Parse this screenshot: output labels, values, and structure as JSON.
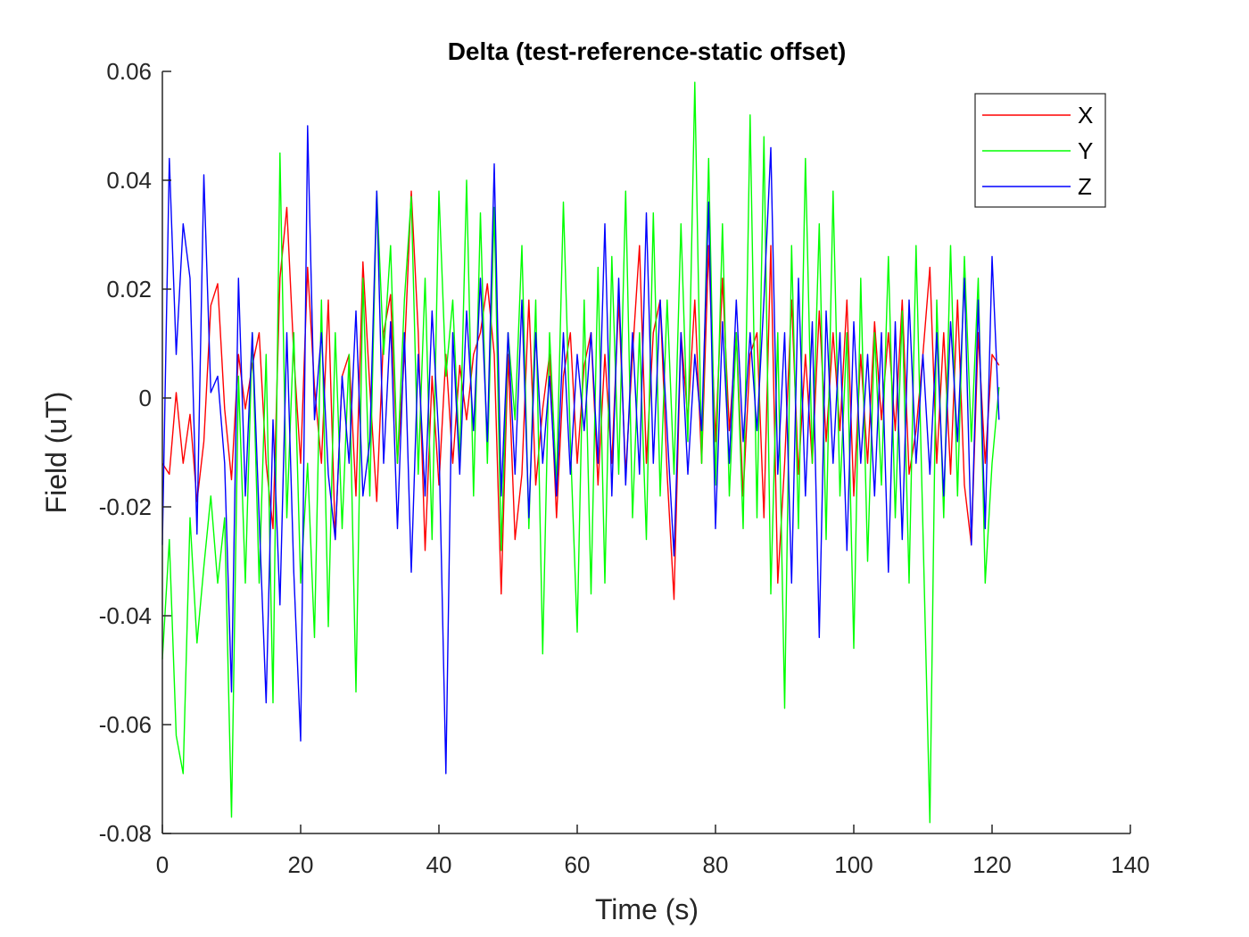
{
  "chart_data": {
    "type": "line",
    "title": "Delta (test-reference-static offset)",
    "xlabel": "Time (s)",
    "ylabel": "Field (uT)",
    "xlim": [
      0,
      140
    ],
    "ylim": [
      -0.08,
      0.06
    ],
    "xticks": [
      0,
      20,
      40,
      60,
      80,
      100,
      120,
      140
    ],
    "xtick_labels": [
      "0",
      "20",
      "40",
      "60",
      "80",
      "100",
      "120",
      "140"
    ],
    "yticks": [
      -0.08,
      -0.06,
      -0.04,
      -0.02,
      0,
      0.02,
      0.04,
      0.06
    ],
    "ytick_labels": [
      "-0.08",
      "-0.06",
      "-0.04",
      "-0.02",
      "0",
      "0.02",
      "0.04",
      "0.06"
    ],
    "grid": false,
    "legend_position": "top-right",
    "series": [
      {
        "name": "X",
        "color": "#ff0000",
        "x": [
          0,
          1,
          2,
          3,
          4,
          5,
          6,
          7,
          8,
          9,
          10,
          11,
          12,
          13,
          14,
          15,
          16,
          17,
          18,
          19,
          20,
          21,
          22,
          23,
          24,
          25,
          26,
          27,
          28,
          29,
          30,
          31,
          32,
          33,
          34,
          35,
          36,
          37,
          38,
          39,
          40,
          41,
          42,
          43,
          44,
          45,
          46,
          47,
          48,
          49,
          50,
          51,
          52,
          53,
          54,
          55,
          56,
          57,
          58,
          59,
          60,
          61,
          62,
          63,
          64,
          65,
          66,
          67,
          68,
          69,
          70,
          71,
          72,
          73,
          74,
          75,
          76,
          77,
          78,
          79,
          80,
          81,
          82,
          83,
          84,
          85,
          86,
          87,
          88,
          89,
          90,
          91,
          92,
          93,
          94,
          95,
          96,
          97,
          98,
          99,
          100,
          101,
          102,
          103,
          104,
          105,
          106,
          107,
          108,
          109,
          110,
          111,
          112,
          113,
          114,
          115,
          116,
          117,
          118,
          119,
          120,
          121
        ],
        "y": [
          -0.012,
          -0.014,
          0.001,
          -0.012,
          -0.003,
          -0.019,
          -0.008,
          0.017,
          0.021,
          -0.002,
          -0.015,
          0.008,
          -0.002,
          0.006,
          0.012,
          -0.012,
          -0.024,
          0.022,
          0.035,
          0.008,
          -0.012,
          0.024,
          0.002,
          -0.012,
          0.018,
          -0.026,
          0.004,
          0.008,
          -0.018,
          0.025,
          0.002,
          -0.019,
          0.012,
          0.019,
          -0.012,
          0.008,
          0.038,
          0.012,
          -0.028,
          0.004,
          -0.016,
          0.008,
          -0.012,
          0.006,
          -0.004,
          0.008,
          0.012,
          0.021,
          0.008,
          -0.036,
          0.008,
          -0.026,
          -0.014,
          0.018,
          -0.016,
          -0.002,
          0.008,
          -0.022,
          0.004,
          0.012,
          -0.012,
          0.006,
          0.012,
          -0.016,
          0.008,
          -0.012,
          0.018,
          -0.014,
          0.008,
          0.028,
          -0.012,
          0.012,
          0.018,
          -0.014,
          -0.037,
          0.012,
          -0.004,
          0.018,
          -0.012,
          0.028,
          -0.008,
          0.022,
          -0.006,
          0.012,
          -0.018,
          0.008,
          0.012,
          -0.022,
          0.028,
          -0.034,
          -0.012,
          0.018,
          -0.014,
          0.008,
          -0.012,
          0.016,
          -0.008,
          0.012,
          -0.006,
          0.018,
          -0.018,
          0.008,
          -0.012,
          0.014,
          -0.004,
          0.012,
          -0.006,
          0.018,
          -0.014,
          -0.006,
          0.008,
          0.024,
          -0.012,
          0.012,
          -0.014,
          0.018,
          -0.016,
          -0.027,
          0.012,
          -0.012,
          0.008,
          0.006
        ]
      },
      {
        "name": "Y",
        "color": "#00ff00",
        "x": [
          0,
          1,
          2,
          3,
          4,
          5,
          6,
          7,
          8,
          9,
          10,
          11,
          12,
          13,
          14,
          15,
          16,
          17,
          18,
          19,
          20,
          21,
          22,
          23,
          24,
          25,
          26,
          27,
          28,
          29,
          30,
          31,
          32,
          33,
          34,
          35,
          36,
          37,
          38,
          39,
          40,
          41,
          42,
          43,
          44,
          45,
          46,
          47,
          48,
          49,
          50,
          51,
          52,
          53,
          54,
          55,
          56,
          57,
          58,
          59,
          60,
          61,
          62,
          63,
          64,
          65,
          66,
          67,
          68,
          69,
          70,
          71,
          72,
          73,
          74,
          75,
          76,
          77,
          78,
          79,
          80,
          81,
          82,
          83,
          84,
          85,
          86,
          87,
          88,
          89,
          90,
          91,
          92,
          93,
          94,
          95,
          96,
          97,
          98,
          99,
          100,
          101,
          102,
          103,
          104,
          105,
          106,
          107,
          108,
          109,
          110,
          111,
          112,
          113,
          114,
          115,
          116,
          117,
          118,
          119,
          120,
          121
        ],
        "y": [
          -0.048,
          -0.026,
          -0.062,
          -0.069,
          -0.022,
          -0.045,
          -0.031,
          -0.018,
          -0.034,
          -0.022,
          -0.077,
          0.004,
          -0.034,
          0.012,
          -0.034,
          0.008,
          -0.056,
          0.045,
          -0.022,
          0.012,
          -0.034,
          -0.012,
          -0.044,
          0.018,
          -0.042,
          0.012,
          -0.024,
          0.008,
          -0.054,
          0.022,
          -0.018,
          0.038,
          0.008,
          0.028,
          -0.012,
          0.018,
          0.037,
          -0.014,
          0.022,
          -0.026,
          0.038,
          0.004,
          0.018,
          -0.012,
          0.04,
          -0.018,
          0.034,
          -0.012,
          0.035,
          -0.028,
          0.012,
          -0.004,
          0.028,
          -0.024,
          0.018,
          -0.047,
          0.012,
          -0.016,
          0.036,
          -0.008,
          -0.043,
          0.018,
          -0.036,
          0.024,
          -0.034,
          0.026,
          -0.014,
          0.038,
          -0.022,
          0.012,
          -0.026,
          0.034,
          -0.018,
          0.018,
          -0.014,
          0.032,
          -0.008,
          0.058,
          -0.012,
          0.044,
          -0.016,
          0.032,
          -0.018,
          0.012,
          -0.024,
          0.052,
          -0.022,
          0.048,
          -0.036,
          0.012,
          -0.057,
          0.028,
          -0.024,
          0.044,
          -0.012,
          0.032,
          -0.026,
          0.038,
          -0.018,
          0.012,
          -0.046,
          0.022,
          -0.03,
          0.012,
          -0.016,
          0.026,
          -0.022,
          0.016,
          -0.034,
          0.028,
          -0.024,
          -0.078,
          0.018,
          -0.022,
          0.028,
          -0.018,
          0.026,
          -0.008,
          0.022,
          -0.034,
          -0.012,
          0.002
        ]
      },
      {
        "name": "Z",
        "color": "#0000ff",
        "x": [
          0,
          1,
          2,
          3,
          4,
          5,
          6,
          7,
          8,
          9,
          10,
          11,
          12,
          13,
          14,
          15,
          16,
          17,
          18,
          19,
          20,
          21,
          22,
          23,
          24,
          25,
          26,
          27,
          28,
          29,
          30,
          31,
          32,
          33,
          34,
          35,
          36,
          37,
          38,
          39,
          40,
          41,
          42,
          43,
          44,
          45,
          46,
          47,
          48,
          49,
          50,
          51,
          52,
          53,
          54,
          55,
          56,
          57,
          58,
          59,
          60,
          61,
          62,
          63,
          64,
          65,
          66,
          67,
          68,
          69,
          70,
          71,
          72,
          73,
          74,
          75,
          76,
          77,
          78,
          79,
          80,
          81,
          82,
          83,
          84,
          85,
          86,
          87,
          88,
          89,
          90,
          91,
          92,
          93,
          94,
          95,
          96,
          97,
          98,
          99,
          100,
          101,
          102,
          103,
          104,
          105,
          106,
          107,
          108,
          109,
          110,
          111,
          112,
          113,
          114,
          115,
          116,
          117,
          118,
          119,
          120,
          121
        ],
        "y": [
          -0.027,
          0.044,
          0.008,
          0.032,
          0.022,
          -0.025,
          0.041,
          0.001,
          0.004,
          -0.012,
          -0.054,
          0.022,
          -0.018,
          0.012,
          -0.022,
          -0.056,
          -0.004,
          -0.038,
          0.012,
          -0.032,
          -0.063,
          0.05,
          -0.004,
          0.012,
          -0.014,
          -0.026,
          0.004,
          -0.012,
          0.016,
          -0.018,
          -0.008,
          0.038,
          -0.012,
          0.014,
          -0.024,
          0.012,
          -0.032,
          0.008,
          -0.018,
          0.016,
          -0.008,
          -0.069,
          0.012,
          -0.014,
          0.016,
          -0.006,
          0.022,
          -0.008,
          0.043,
          -0.018,
          0.012,
          -0.014,
          0.018,
          -0.022,
          0.012,
          -0.012,
          0.004,
          -0.018,
          0.012,
          -0.014,
          0.008,
          -0.006,
          0.012,
          -0.012,
          0.032,
          -0.018,
          0.022,
          -0.016,
          0.012,
          -0.014,
          0.034,
          -0.012,
          0.018,
          -0.006,
          -0.029,
          0.012,
          -0.014,
          0.008,
          -0.006,
          0.036,
          -0.024,
          0.014,
          -0.012,
          0.018,
          -0.008,
          0.012,
          -0.006,
          0.018,
          0.046,
          -0.014,
          0.012,
          -0.034,
          0.022,
          -0.018,
          0.014,
          -0.044,
          0.016,
          -0.012,
          0.012,
          -0.028,
          0.014,
          -0.012,
          0.008,
          -0.018,
          0.012,
          -0.032,
          0.014,
          -0.026,
          0.018,
          -0.012,
          0.008,
          -0.014,
          0.012,
          -0.018,
          0.014,
          -0.008,
          0.022,
          -0.027,
          0.018,
          -0.024,
          0.026,
          -0.004
        ]
      }
    ]
  }
}
